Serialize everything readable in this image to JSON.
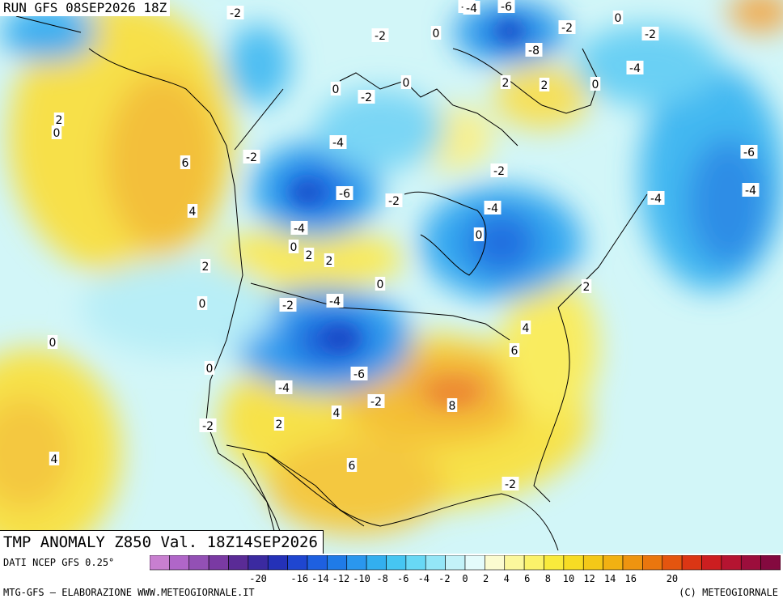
{
  "header": {
    "run": "RUN GFS 08SEP2026 18Z"
  },
  "title": "TMP ANOMALY Z850 Val. 18Z14SEP2026",
  "footer": {
    "source": "DATI NCEP GFS 0.25°",
    "credit_left": "MTG-GFS — ELABORAZIONE WWW.METEOGIORNALE.IT",
    "credit_right": "(C) METEOGIORNALE"
  },
  "colorbar": {
    "ticks": [
      "-20",
      "-18",
      "-16",
      "-14",
      "-12",
      "-10",
      "-8",
      "-6",
      "-4",
      "-2",
      "0",
      "2",
      "4",
      "6",
      "8",
      "10",
      "12",
      "14",
      "16",
      "18",
      "20"
    ],
    "tick_labels_shown": [
      "-20",
      "-16",
      "-14",
      "-12",
      "-10",
      "-8",
      "-6",
      "-4",
      "-2",
      "0",
      "2",
      "4",
      "6",
      "8",
      "10",
      "12",
      "14",
      "16",
      "20"
    ],
    "colors": [
      "#c87fd0",
      "#b066c8",
      "#9350b5",
      "#7a3aa3",
      "#5a2b96",
      "#3b2aa0",
      "#2431b8",
      "#1f46d0",
      "#1e60e0",
      "#1f7be8",
      "#2a97ee",
      "#33afef",
      "#46c6f2",
      "#68d8f5",
      "#94e6f7",
      "#c3f2f8",
      "#e4fbfb",
      "#fbfbd0",
      "#fbf79c",
      "#fbf26a",
      "#f9ea3c",
      "#f7dc24",
      "#f4c818",
      "#f2b112",
      "#ee9410",
      "#ea760e",
      "#e4550f",
      "#db3614",
      "#cc1e20",
      "#b51431",
      "#9c0e3c",
      "#84093f"
    ]
  },
  "map_labels": [
    {
      "text": "-2"
    },
    {
      "text": "-2"
    },
    {
      "text": "-4"
    },
    {
      "text": "-6"
    },
    {
      "text": "0"
    },
    {
      "text": "-2"
    },
    {
      "text": "0"
    },
    {
      "text": "-8"
    },
    {
      "text": "-2"
    },
    {
      "text": "-2"
    },
    {
      "text": "-4"
    },
    {
      "text": "0"
    },
    {
      "text": "2"
    },
    {
      "text": "2"
    },
    {
      "text": "0"
    },
    {
      "text": "0"
    },
    {
      "text": "-2"
    },
    {
      "text": "2"
    },
    {
      "text": "0"
    },
    {
      "text": "6"
    },
    {
      "text": "-4"
    },
    {
      "text": "-2"
    },
    {
      "text": "-6"
    },
    {
      "text": "-6"
    },
    {
      "text": "-2"
    },
    {
      "text": "-2"
    },
    {
      "text": "-4"
    },
    {
      "text": "-4"
    },
    {
      "text": "4"
    },
    {
      "text": "-4"
    },
    {
      "text": "0"
    },
    {
      "text": "2"
    },
    {
      "text": "2"
    },
    {
      "text": "2"
    },
    {
      "text": "-4"
    },
    {
      "text": "0"
    },
    {
      "text": "-2"
    },
    {
      "text": "-4"
    },
    {
      "text": "2"
    },
    {
      "text": "0"
    },
    {
      "text": "4"
    },
    {
      "text": "0"
    },
    {
      "text": "6"
    },
    {
      "text": "-6"
    },
    {
      "text": "0"
    },
    {
      "text": "0"
    },
    {
      "text": "-4"
    },
    {
      "text": "-2"
    },
    {
      "text": "8"
    },
    {
      "text": "4"
    },
    {
      "text": "2"
    },
    {
      "text": "-2"
    },
    {
      "text": "4"
    },
    {
      "text": "6"
    },
    {
      "text": "-2"
    }
  ]
}
